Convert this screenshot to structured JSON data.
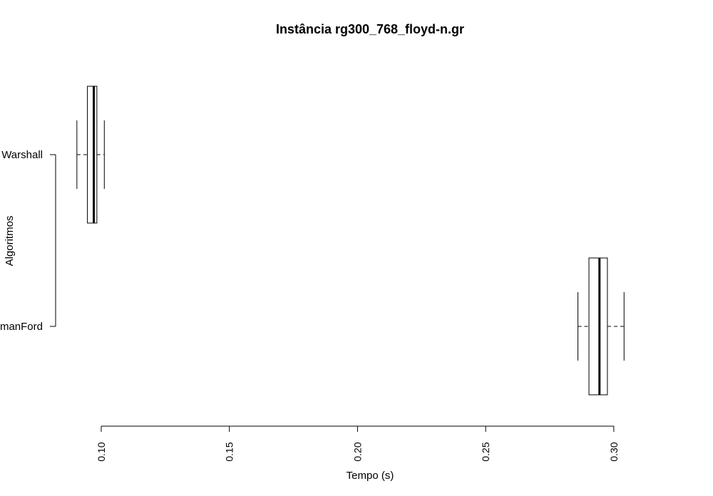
{
  "chart_data": {
    "type": "boxplot",
    "orientation": "horizontal",
    "title": "Instância rg300_768_floyd-n.gr",
    "xlabel": "Tempo (s)",
    "ylabel": "Algoritmos",
    "xticks": [
      0.1,
      0.15,
      0.2,
      0.25,
      0.3
    ],
    "xtick_labels": [
      "0.10",
      "0.15",
      "0.20",
      "0.25",
      "0.30"
    ],
    "xlim": [
      0.0605,
      0.3387
    ],
    "grid": false,
    "series": [
      {
        "name": "FloydWarshall",
        "display_label": "Warshall",
        "min": 0.0905,
        "q1": 0.0946,
        "median": 0.0971,
        "q3": 0.0983,
        "max": 0.1012
      },
      {
        "name": "BellmanFord",
        "display_label": "manFord",
        "min": 0.286,
        "q1": 0.2903,
        "median": 0.2944,
        "q3": 0.2975,
        "max": 0.304
      }
    ]
  }
}
